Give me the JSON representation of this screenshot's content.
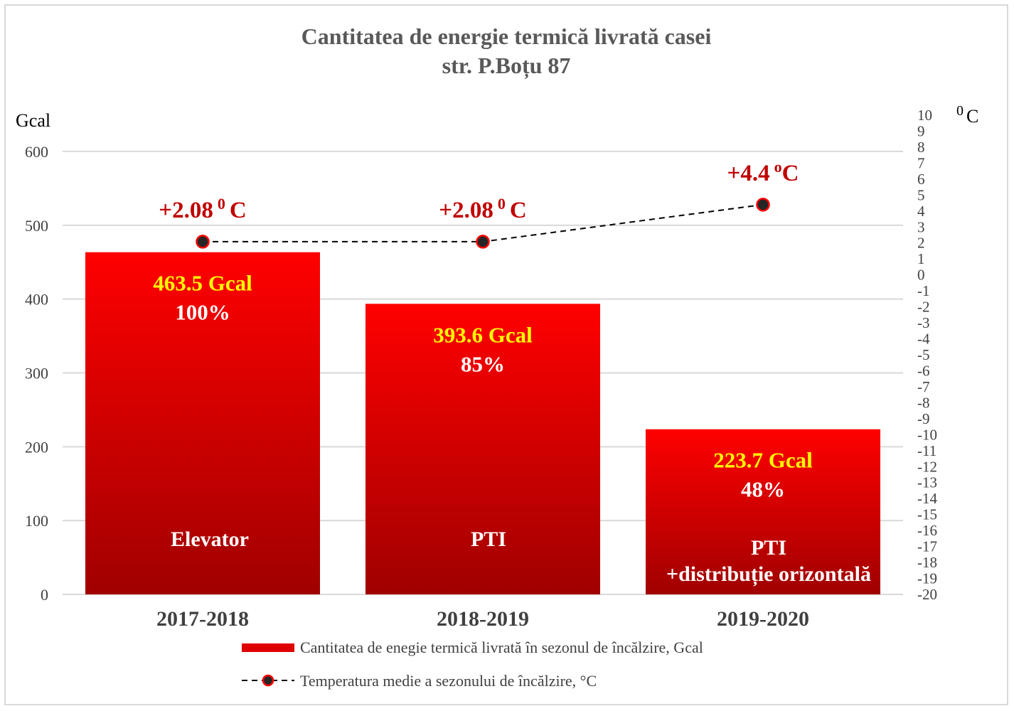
{
  "chart_data": {
    "type": "bar",
    "title": "Cantitatea de energie termică livrată  casei",
    "subtitle": "str. P.Boțu 87",
    "ylabel": "Gcal",
    "ylabel_right": "0 C",
    "ylim": [
      0,
      600
    ],
    "yticks": [
      "0",
      "100",
      "200",
      "300",
      "400",
      "500",
      "600"
    ],
    "ylim_right": [
      -20,
      10
    ],
    "yticks_right": [
      "-20",
      "-19",
      "-18",
      "-17",
      "-16",
      "-15",
      "-14",
      "-13",
      "-12",
      "-11",
      "-10",
      "-9",
      "-8",
      "-7",
      "-6",
      "-5",
      "-4",
      "-3",
      "-2",
      "-1",
      "0",
      "1",
      "2",
      "3",
      "4",
      "5",
      "6",
      "7",
      "8",
      "9",
      "10"
    ],
    "categories": [
      "2017-2018",
      "2018-2019",
      "2019-2020"
    ],
    "series": [
      {
        "name": "Cantitatea de enegie termică livrată în sezonul de încălzire, Gcal",
        "type": "bar",
        "color": "#ff0000",
        "values": [
          463.5,
          393.6,
          223.7
        ],
        "value_labels": [
          "463.5 Gcal",
          "393.6 Gcal",
          "223.7 Gcal"
        ],
        "percent_labels": [
          "100%",
          "85%",
          "48%"
        ],
        "bar_labels": [
          [
            "Elevator"
          ],
          [
            "PTI"
          ],
          [
            "PTI",
            "+distribuție orizontală"
          ]
        ]
      },
      {
        "name": "Temperatura medie a sezonului de încălzire, °C",
        "type": "line",
        "axis": "right",
        "color": "#000000",
        "marker_color": "#ff0000",
        "values": [
          2.08,
          2.08,
          4.4
        ],
        "value_labels": [
          "+2.08 0 C",
          "+2.08 0 C",
          "+4.4 oC"
        ]
      }
    ],
    "grid": true,
    "legend_position": "bottom"
  }
}
